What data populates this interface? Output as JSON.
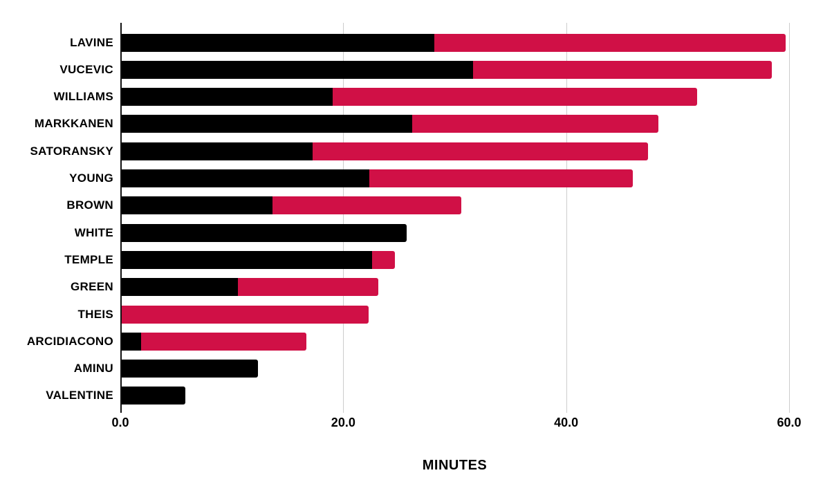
{
  "chart_data": {
    "type": "bar",
    "orientation": "horizontal",
    "stacked": true,
    "title": "",
    "xlabel": "MINUTES",
    "ylabel": "",
    "xlim": [
      0,
      60
    ],
    "xticks": [
      0,
      20,
      40,
      60
    ],
    "xtick_labels": [
      "0.0",
      "20.0",
      "40.0",
      "60.0"
    ],
    "grid": true,
    "legend": false,
    "categories": [
      "LAVINE",
      "VUCEVIC",
      "WILLIAMS",
      "MARKKANEN",
      "SATORANSKY",
      "YOUNG",
      "BROWN",
      "WHITE",
      "TEMPLE",
      "GREEN",
      "THEIS",
      "ARCIDIACONO",
      "AMINU",
      "VALENTINE"
    ],
    "series": [
      {
        "name": "black",
        "color": "#000000",
        "values": [
          28.1,
          31.6,
          19.0,
          26.1,
          17.2,
          22.3,
          13.6,
          25.6,
          22.5,
          10.5,
          0,
          1.8,
          12.3,
          5.8
        ]
      },
      {
        "name": "red",
        "color": "#D01046",
        "values": [
          31.5,
          26.8,
          32.7,
          22.1,
          30.1,
          23.6,
          16.9,
          0,
          2.1,
          12.6,
          22.2,
          14.8,
          0,
          0
        ]
      }
    ],
    "totals": [
      59.6,
      58.4,
      51.7,
      48.2,
      47.3,
      45.9,
      30.5,
      25.6,
      24.6,
      23.1,
      22.2,
      16.6,
      12.3,
      5.8
    ],
    "colors": {
      "background": "#ffffff",
      "gridline": "#cccccc",
      "axis_line": "#111111"
    }
  }
}
